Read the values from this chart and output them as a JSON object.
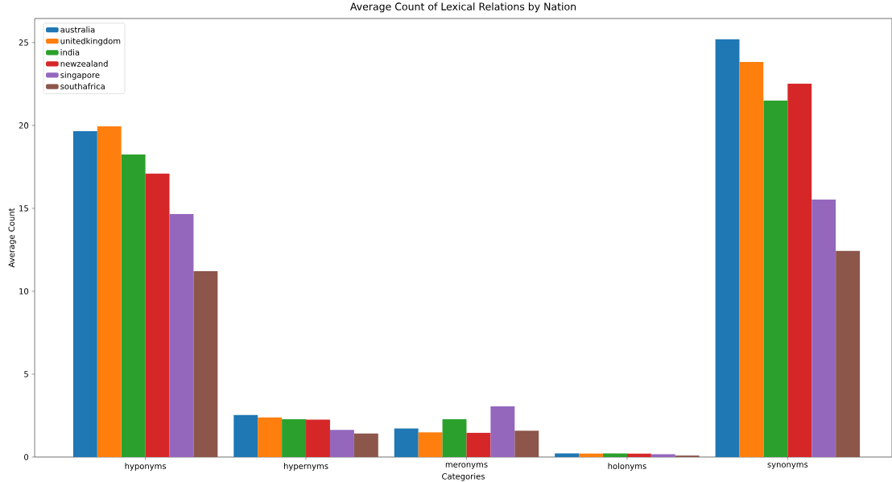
{
  "chart_data": {
    "type": "bar",
    "title": "Average Count of Lexical Relations by Nation",
    "xlabel": "Categories",
    "ylabel": "Average Count",
    "categories": [
      "hyponyms",
      "hypernyms",
      "meronyms",
      "holonyms",
      "synonyms"
    ],
    "series": [
      {
        "name": "australia",
        "color": "#1f77b4",
        "values": [
          19.66,
          2.54,
          1.72,
          0.22,
          25.2
        ]
      },
      {
        "name": "unitedkingdom",
        "color": "#ff7f0e",
        "values": [
          19.95,
          2.39,
          1.49,
          0.21,
          23.83
        ]
      },
      {
        "name": "india",
        "color": "#2ca02c",
        "values": [
          18.25,
          2.28,
          2.28,
          0.22,
          21.5
        ]
      },
      {
        "name": "newzealand",
        "color": "#d62728",
        "values": [
          17.09,
          2.26,
          1.46,
          0.2,
          22.52
        ]
      },
      {
        "name": "singapore",
        "color": "#9467bd",
        "values": [
          14.66,
          1.64,
          3.06,
          0.17,
          15.53
        ]
      },
      {
        "name": "southafrica",
        "color": "#8c564b",
        "values": [
          11.21,
          1.42,
          1.59,
          0.09,
          12.43
        ]
      }
    ],
    "ylim": [
      0,
      26.45
    ],
    "yticks": [
      0,
      5,
      10,
      15,
      20,
      25
    ],
    "legend": "top left",
    "grid": false
  }
}
